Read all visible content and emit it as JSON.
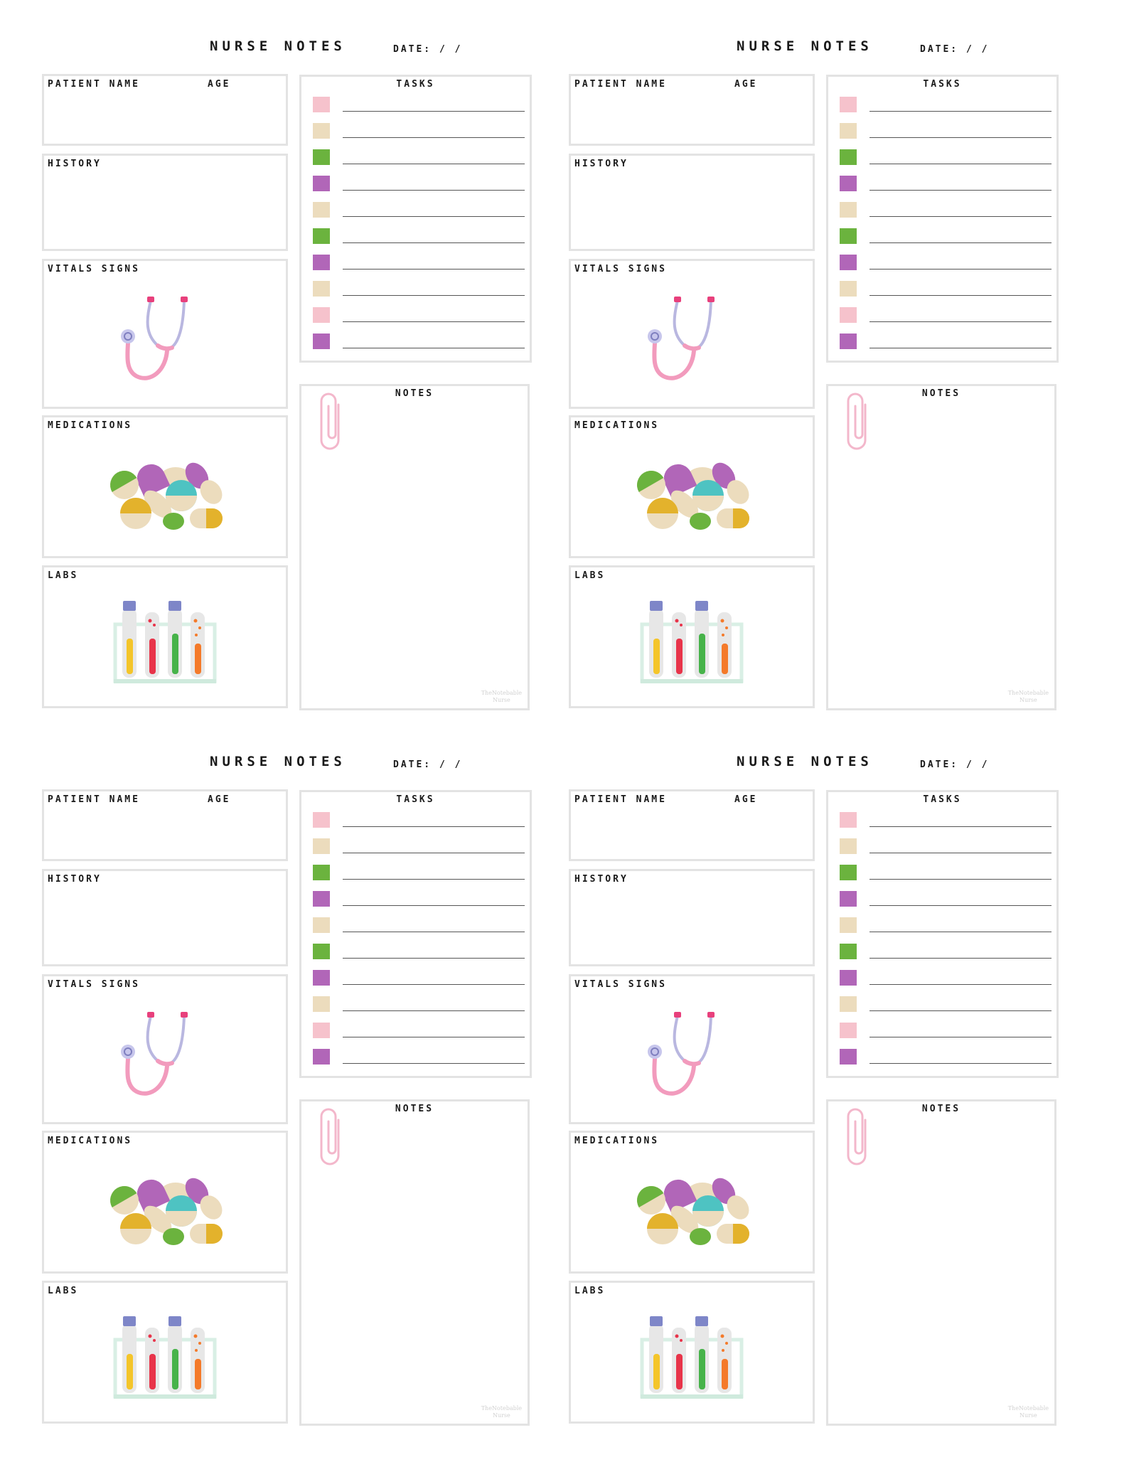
{
  "sheet": {
    "title": "NURSE NOTES",
    "date_label": "DATE: / /",
    "patient_name_label": "PATIENT NAME",
    "age_label": "AGE",
    "history_label": "HISTORY",
    "vitals_label": "VITALS SIGNS",
    "medications_label": "MEDICATIONS",
    "labs_label": "LABS",
    "tasks_label": "TASKS",
    "notes_label": "NOTES",
    "watermark_line1": "TheNotebable",
    "watermark_line2": "Nurse",
    "task_colors": [
      "#f6c2cc",
      "#ecdcbd",
      "#6bb33e",
      "#b166b8",
      "#ecdcbd",
      "#6bb33e",
      "#b166b8",
      "#ecdcbd",
      "#f6c2cc",
      "#b166b8"
    ],
    "icons": {
      "vitals": "stethoscope-icon",
      "medications": "pills-icon",
      "labs": "test-tubes-icon",
      "notes": "paperclip-icon"
    }
  }
}
